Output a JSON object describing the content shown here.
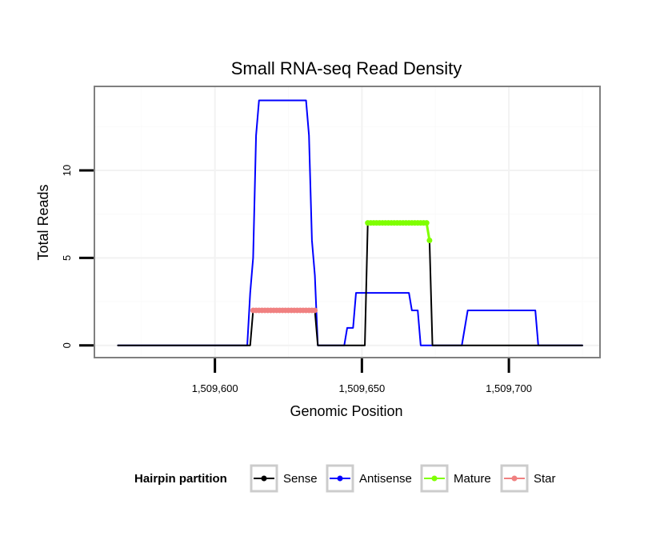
{
  "chart_data": {
    "type": "line",
    "title": "Small RNA-seq Read Density",
    "xlabel": "Genomic Position",
    "ylabel": "Total Reads",
    "xlim": [
      1509559,
      1509731
    ],
    "ylim": [
      -0.7,
      14.8
    ],
    "x_ticks": [
      1509600,
      1509650,
      1509700
    ],
    "x_tick_labels": [
      "1,509,600",
      "1,509,650",
      "1,509,700"
    ],
    "y_ticks": [
      0,
      5,
      10
    ],
    "y_tick_labels": [
      "0",
      "5",
      "10"
    ],
    "grid": true,
    "legend_position": "bottom",
    "legend_title": "Hairpin partition",
    "legend": [
      {
        "key": "sense",
        "label": "Sense",
        "color": "#000000"
      },
      {
        "key": "antisense",
        "label": "Antisense",
        "color": "#0000ff"
      },
      {
        "key": "mature",
        "label": "Mature",
        "color": "#7fff00"
      },
      {
        "key": "star",
        "label": "Star",
        "color": "#f08080"
      }
    ],
    "series": [
      {
        "name": "Antisense",
        "color": "#0000ff",
        "x": [
          1509567,
          1509611,
          1509612,
          1509613,
          1509614,
          1509615,
          1509631,
          1509632,
          1509633,
          1509634,
          1509635,
          1509644,
          1509645,
          1509647,
          1509648,
          1509666,
          1509667,
          1509669,
          1509670,
          1509673,
          1509684,
          1509686,
          1509709,
          1509710,
          1509725
        ],
        "y": [
          0,
          0,
          3,
          5,
          12,
          14,
          14,
          12,
          6,
          4,
          0,
          0,
          1,
          1,
          3,
          3,
          2,
          2,
          0,
          0,
          0,
          2,
          2,
          0,
          0
        ]
      },
      {
        "name": "Sense",
        "color": "#000000",
        "x": [
          1509567,
          1509612,
          1509613,
          1509634,
          1509635,
          1509651,
          1509652,
          1509672,
          1509673,
          1509674,
          1509725
        ],
        "y": [
          0,
          0,
          2,
          2,
          0,
          0,
          7,
          7,
          6,
          0,
          0
        ]
      },
      {
        "name": "Star",
        "color": "#f08080",
        "x": [
          1509613,
          1509614,
          1509615,
          1509616,
          1509617,
          1509618,
          1509619,
          1509620,
          1509621,
          1509622,
          1509623,
          1509624,
          1509625,
          1509626,
          1509627,
          1509628,
          1509629,
          1509630,
          1509631,
          1509632,
          1509633,
          1509634
        ],
        "y": [
          2,
          2,
          2,
          2,
          2,
          2,
          2,
          2,
          2,
          2,
          2,
          2,
          2,
          2,
          2,
          2,
          2,
          2,
          2,
          2,
          2,
          2
        ]
      },
      {
        "name": "Mature",
        "color": "#7fff00",
        "x": [
          1509652,
          1509653,
          1509654,
          1509655,
          1509656,
          1509657,
          1509658,
          1509659,
          1509660,
          1509661,
          1509662,
          1509663,
          1509664,
          1509665,
          1509666,
          1509667,
          1509668,
          1509669,
          1509670,
          1509671,
          1509672,
          1509673
        ],
        "y": [
          7,
          7,
          7,
          7,
          7,
          7,
          7,
          7,
          7,
          7,
          7,
          7,
          7,
          7,
          7,
          7,
          7,
          7,
          7,
          7,
          7,
          6
        ]
      }
    ]
  }
}
